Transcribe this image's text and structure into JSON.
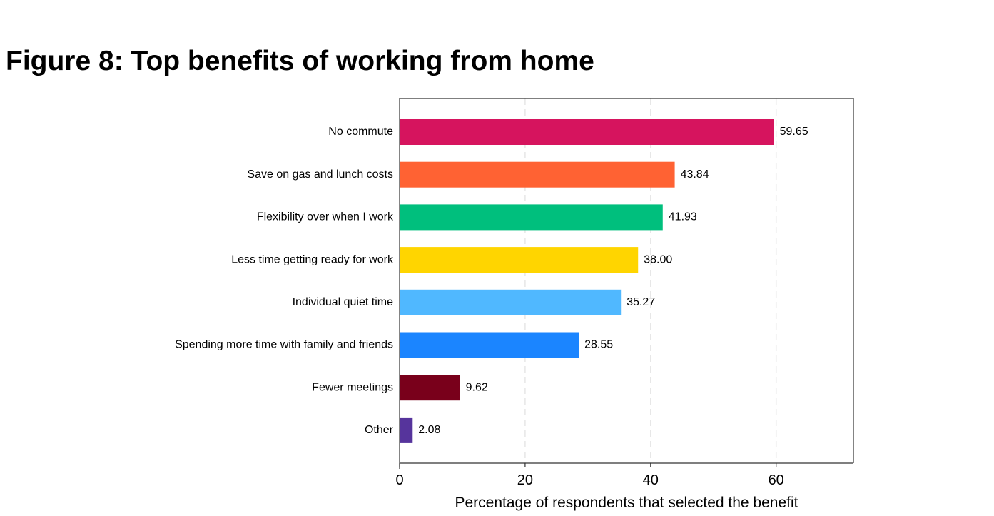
{
  "figure": {
    "title": "Figure 8: Top benefits of working from home"
  },
  "chart_data": {
    "type": "bar",
    "orientation": "horizontal",
    "title": "",
    "xlabel": "Percentage of respondents that selected the benefit",
    "ylabel": "",
    "xlim": [
      0,
      72
    ],
    "xticks": [
      0,
      20,
      40,
      60
    ],
    "grid": "vertical dashed",
    "categories": [
      "No commute",
      "Save on gas and lunch costs",
      "Flexibility over when I work",
      "Less time getting ready for work",
      "Individual quiet time",
      "Spending more time with family and friends",
      "Fewer meetings",
      "Other"
    ],
    "values": [
      59.65,
      43.84,
      41.93,
      38.0,
      35.27,
      28.55,
      9.62,
      2.08
    ],
    "value_labels": [
      "59.65",
      "43.84",
      "41.93",
      "38.00",
      "35.27",
      "28.55",
      "9.62",
      "2.08"
    ],
    "colors": [
      "#D6145E",
      "#FF6233",
      "#00BF7D",
      "#FFD500",
      "#50B8FF",
      "#1B85FF",
      "#79001B",
      "#56349C"
    ]
  }
}
